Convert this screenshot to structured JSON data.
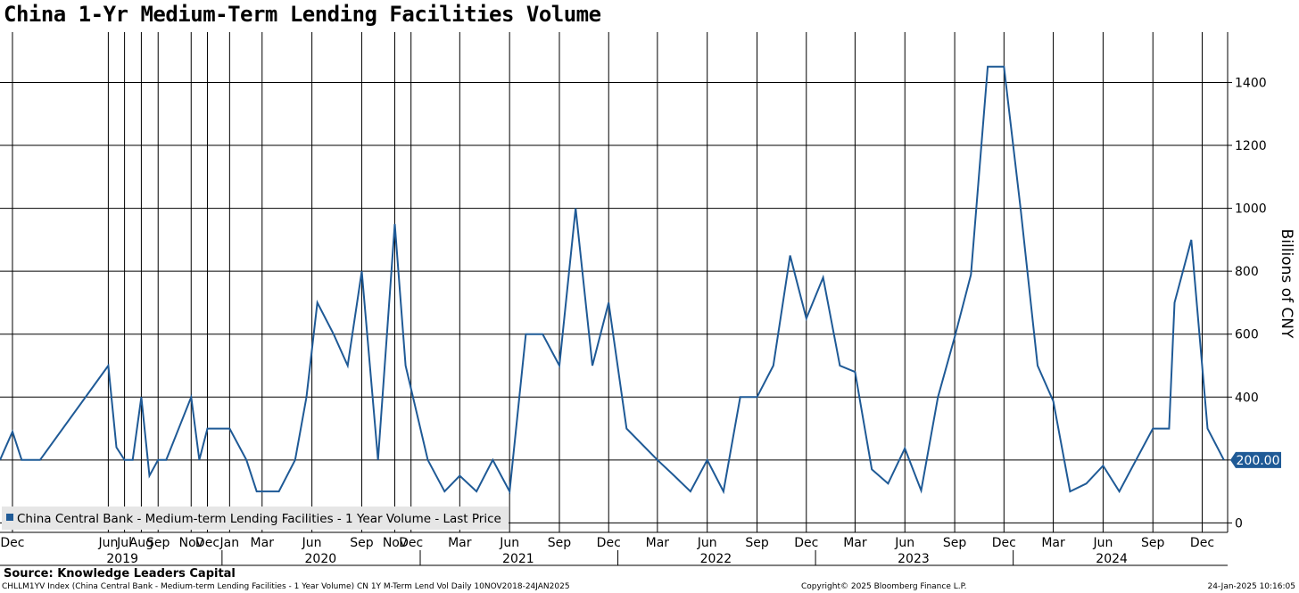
{
  "chart_data": {
    "type": "line",
    "title": "China 1-Yr Medium-Term Lending Facilities Volume",
    "ylabel": "Billions of CNY",
    "ylim": [
      -30,
      1560
    ],
    "y_ticks": [
      0,
      200,
      400,
      600,
      800,
      1000,
      1200,
      1400
    ],
    "legend": "China Central Bank - Medium-term Lending Facilities - 1 Year Volume - Last Price",
    "last_value_label": "200.00",
    "x_range": [
      "2018-11-17",
      "2025-01-31"
    ],
    "month_ticks": [
      {
        "label": "Dec",
        "date": "2018-12-10"
      },
      {
        "label": "Jun",
        "date": "2019-06-05"
      },
      {
        "label": "Jul",
        "date": "2019-07-05"
      },
      {
        "label": "Aug",
        "date": "2019-08-05"
      },
      {
        "label": "Sep",
        "date": "2019-09-05"
      },
      {
        "label": "Nov",
        "date": "2019-11-05"
      },
      {
        "label": "Dec",
        "date": "2019-12-05"
      },
      {
        "label": "Jan",
        "date": "2020-01-15"
      },
      {
        "label": "Mar",
        "date": "2020-03-15"
      },
      {
        "label": "Jun",
        "date": "2020-06-15"
      },
      {
        "label": "Sep",
        "date": "2020-09-15"
      },
      {
        "label": "Nov",
        "date": "2020-11-15"
      },
      {
        "label": "Dec",
        "date": "2020-12-15"
      },
      {
        "label": "Mar",
        "date": "2021-03-15"
      },
      {
        "label": "Jun",
        "date": "2021-06-15"
      },
      {
        "label": "Sep",
        "date": "2021-09-15"
      },
      {
        "label": "Dec",
        "date": "2021-12-15"
      },
      {
        "label": "Mar",
        "date": "2022-03-15"
      },
      {
        "label": "Jun",
        "date": "2022-06-15"
      },
      {
        "label": "Sep",
        "date": "2022-09-15"
      },
      {
        "label": "Dec",
        "date": "2022-12-15"
      },
      {
        "label": "Mar",
        "date": "2023-03-15"
      },
      {
        "label": "Jun",
        "date": "2023-06-15"
      },
      {
        "label": "Sep",
        "date": "2023-09-15"
      },
      {
        "label": "Dec",
        "date": "2023-12-15"
      },
      {
        "label": "Mar",
        "date": "2024-03-15"
      },
      {
        "label": "Jun",
        "date": "2024-06-15"
      },
      {
        "label": "Sep",
        "date": "2024-09-15"
      },
      {
        "label": "Dec",
        "date": "2024-12-15"
      }
    ],
    "year_labels": [
      {
        "label": "2019",
        "date": "2019-07-01"
      },
      {
        "label": "2020",
        "date": "2020-07-01"
      },
      {
        "label": "2021",
        "date": "2021-07-01"
      },
      {
        "label": "2022",
        "date": "2022-07-01"
      },
      {
        "label": "2023",
        "date": "2023-07-01"
      },
      {
        "label": "2024",
        "date": "2024-07-01"
      }
    ],
    "year_dividers": [
      "2020-01-01",
      "2021-01-01",
      "2022-01-01",
      "2023-01-01",
      "2024-01-01"
    ],
    "series": [
      {
        "name": "China Central Bank - Medium-term Lending Facilities - 1 Year Volume - Last Price",
        "color": "#1f5a96",
        "points": [
          [
            "2018-11-17",
            200
          ],
          [
            "2018-12-10",
            290
          ],
          [
            "2018-12-27",
            200
          ],
          [
            "2019-01-30",
            200
          ],
          [
            "2019-06-05",
            500
          ],
          [
            "2019-06-20",
            240
          ],
          [
            "2019-07-05",
            200
          ],
          [
            "2019-07-20",
            200
          ],
          [
            "2019-08-05",
            400
          ],
          [
            "2019-08-20",
            150
          ],
          [
            "2019-09-05",
            200
          ],
          [
            "2019-09-20",
            200
          ],
          [
            "2019-11-05",
            400
          ],
          [
            "2019-11-20",
            200
          ],
          [
            "2019-12-05",
            300
          ],
          [
            "2019-12-25",
            300
          ],
          [
            "2020-01-15",
            300
          ],
          [
            "2020-02-15",
            200
          ],
          [
            "2020-03-05",
            100
          ],
          [
            "2020-03-25",
            100
          ],
          [
            "2020-04-15",
            100
          ],
          [
            "2020-05-15",
            200
          ],
          [
            "2020-06-05",
            400
          ],
          [
            "2020-06-25",
            700
          ],
          [
            "2020-07-25",
            600
          ],
          [
            "2020-08-20",
            500
          ],
          [
            "2020-09-15",
            800
          ],
          [
            "2020-10-15",
            200
          ],
          [
            "2020-11-15",
            950
          ],
          [
            "2020-12-05",
            500
          ],
          [
            "2021-01-15",
            200
          ],
          [
            "2021-02-15",
            100
          ],
          [
            "2021-03-15",
            150
          ],
          [
            "2021-04-15",
            100
          ],
          [
            "2021-05-15",
            200
          ],
          [
            "2021-06-15",
            100
          ],
          [
            "2021-07-15",
            600
          ],
          [
            "2021-08-15",
            600
          ],
          [
            "2021-09-15",
            500
          ],
          [
            "2021-10-15",
            1000
          ],
          [
            "2021-11-15",
            500
          ],
          [
            "2021-12-15",
            700
          ],
          [
            "2022-01-17",
            300
          ],
          [
            "2022-03-15",
            200
          ],
          [
            "2022-04-15",
            150
          ],
          [
            "2022-05-15",
            100
          ],
          [
            "2022-06-15",
            200
          ],
          [
            "2022-07-15",
            100
          ],
          [
            "2022-08-15",
            400
          ],
          [
            "2022-09-15",
            400
          ],
          [
            "2022-10-15",
            500
          ],
          [
            "2022-11-15",
            850
          ],
          [
            "2022-12-15",
            650
          ],
          [
            "2023-01-15",
            780
          ],
          [
            "2023-02-15",
            500
          ],
          [
            "2023-03-15",
            480
          ],
          [
            "2023-04-15",
            170
          ],
          [
            "2023-05-15",
            125
          ],
          [
            "2023-06-15",
            237
          ],
          [
            "2023-07-15",
            103
          ],
          [
            "2023-08-15",
            400
          ],
          [
            "2023-09-15",
            591
          ],
          [
            "2023-10-15",
            789
          ],
          [
            "2023-11-15",
            1450
          ],
          [
            "2023-12-15",
            1450
          ],
          [
            "2024-01-15",
            995
          ],
          [
            "2024-02-15",
            500
          ],
          [
            "2024-03-15",
            387
          ],
          [
            "2024-04-15",
            100
          ],
          [
            "2024-05-15",
            125
          ],
          [
            "2024-06-15",
            182
          ],
          [
            "2024-07-15",
            100
          ],
          [
            "2024-08-15",
            200
          ],
          [
            "2024-09-15",
            300
          ],
          [
            "2024-10-15",
            300
          ],
          [
            "2024-10-25",
            700
          ],
          [
            "2024-11-25",
            900
          ],
          [
            "2024-12-25",
            300
          ],
          [
            "2025-01-24",
            200
          ]
        ]
      }
    ]
  },
  "source": "Source: Knowledge Leaders Capital",
  "footer": {
    "left": "CHLLM1YV Index (China Central Bank - Medium-term Lending Facilities - 1 Year Volume) CN 1Y M-Term Lend Vol  Daily 10NOV2018-24JAN2025",
    "center": "Copyright© 2025 Bloomberg Finance L.P.",
    "right": "24-Jan-2025 10:16:05"
  }
}
